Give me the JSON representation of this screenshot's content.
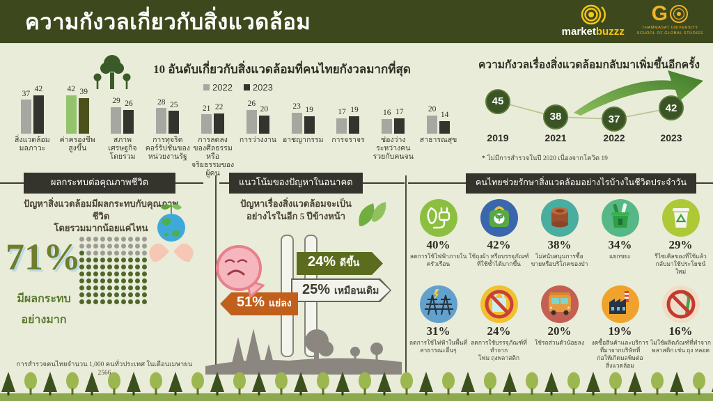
{
  "header": {
    "title": "ความกังวลเกี่ยวกับสิ่งแวดล้อม",
    "brand_market": "market",
    "brand_buzzz": "buzzz",
    "go_letter": "G",
    "go_line1": "THAMMASAT UNIVERSITY",
    "go_line2": "SCHOOL OF GLOBAL STUDIES"
  },
  "section_headers": {
    "impact": "ผลกระทบต่อคุณภาพชีวิต",
    "future": "แนวโน้มของปัญหาในอนาคต",
    "actions": "คนไทยช่วยรักษาสิ่งแวดล้อมอย่างไรบ้างในชีวิตประจำวัน"
  },
  "survey_note": "การสำรวจคนไทยจำนวน 1,000 คนทั่วประเทศ ในเดือนเมษายน  2566",
  "chart_data": [
    {
      "type": "bar",
      "title": "10 อันดับเกี่ยวกับสิ่งแวดล้อมที่คนไทยกังวลมากที่สุด",
      "legend": [
        "2022",
        "2023"
      ],
      "categories": [
        "สิ่งแวดล้อม\nมลภาวะ",
        "ค่าครองชีพ\nสูงขึ้น",
        "สภาพ\nเศรษฐกิจ\nโดยรวม",
        "การทุจริต\nคอร์รัปชันของ\nหน่วยงานรัฐ",
        "การลดลง\nของศีลธรรม\nหรือ\nจริยธรรมของ\nผู้คน",
        "การว่างงาน",
        "อาชญากรรม",
        "การจราจร",
        "ช่องว่าง\nระหว่างคน\nรวยกับคนจน",
        "สาธารณสุข"
      ],
      "series": [
        {
          "name": "2022",
          "values": [
            37,
            42,
            29,
            28,
            21,
            26,
            23,
            17,
            16,
            20
          ]
        },
        {
          "name": "2023",
          "values": [
            42,
            39,
            26,
            25,
            22,
            20,
            19,
            19,
            17,
            14
          ]
        }
      ],
      "highlight_index": 1,
      "ylim": [
        0,
        50
      ],
      "colors": {
        "s2022": "#a7a7a2",
        "s2023": "#34342e",
        "h2022": "#93c36a",
        "h2023": "#4c511c"
      }
    },
    {
      "type": "line",
      "title": "ความกังวลเรื่องสิ่งแวดล้อมกลับมาเพิ่มขึ้นอีกครั้ง",
      "x": [
        "2019",
        "2021",
        "2022",
        "2023"
      ],
      "values": [
        45,
        38,
        37,
        42
      ],
      "footnote_mark": "*",
      "footnote": "ไม่มีการสำรวจในปี 2020 เนื่องจากโควิด 19"
    },
    {
      "type": "pictogram",
      "question": "ปัญหาสิ่งแวดล้อมมีผลกระทบกับคุณภาพชีวิต\nโดยรวมมากน้อยแค่ไหน",
      "percent": 71,
      "percent_label": "71%",
      "caption": "มีผลกระทบ\nอย่างมาก",
      "dots_total": 100,
      "dot_green": "#4e672c",
      "dot_gray": "#9c9c94"
    },
    {
      "type": "split",
      "question": "ปัญหาเรื่องสิ่งแวดล้อมจะเป็น\nอย่างไรในอีก 5 ปีข้างหน้า",
      "options": [
        {
          "pct": "24%",
          "label": "ดีขึ้น"
        },
        {
          "pct": "25%",
          "label": "เหมือนเดิม"
        },
        {
          "pct": "51%",
          "label": "แย่ลง"
        }
      ]
    },
    {
      "type": "icon-list",
      "items": [
        {
          "pct": "40%",
          "label": "ลดการใช้ไฟฟ้าภายในครัวเรือน",
          "icon": "leaf-plug-icon",
          "bg": "#8cbf3f"
        },
        {
          "pct": "42%",
          "label": "ใช้ถุงผ้า หรือบรรจุภัณฑ์\nที่ใช้ซ้ำได้มากขึ้น",
          "icon": "reusable-bag-icon",
          "bg": "#3a66ae"
        },
        {
          "pct": "38%",
          "label": "ไม่สนับสนุนการซื้อ\nขายหรือบริโภคของป่า",
          "icon": "log-icon",
          "bg": "#49ada0"
        },
        {
          "pct": "34%",
          "label": "แยกขยะ",
          "icon": "sorting-bin-icon",
          "bg": "#56b787"
        },
        {
          "pct": "29%",
          "label": "รีไซเคิลของที่ใช้แล้ว\nกลับมาใช้ประโยชน์ใหม่",
          "icon": "recycle-bin-icon",
          "bg": "#aec936"
        },
        {
          "pct": "31%",
          "label": "ลดการใช้ไฟฟ้าในพื้นที่\nสาธารณะอื่นๆ",
          "icon": "power-pylon-icon",
          "bg": "#64a0cc"
        },
        {
          "pct": "24%",
          "label": "ลดการใช้บรรจุภัณฑ์ที่ทำจาก\nโฟม ถุงพลาสติก",
          "icon": "no-plastic-bag-icon",
          "bg": "#f1c12f"
        },
        {
          "pct": "20%",
          "label": "ใช้รถส่วนตัวน้อยลง",
          "icon": "bus-icon",
          "bg": "#c35f53"
        },
        {
          "pct": "19%",
          "label": "งดซื้อสินค้าและบริการ\nที่มาจากบริษัทที่\nก่อให้เกิดมลพิษต่อ\nสิ่งแวดล้อม",
          "icon": "factory-icon",
          "bg": "#efa32c"
        },
        {
          "pct": "16%",
          "label": "ไม่ใช้ผลิตภัณฑ์ที่ทำจาก\nพลาสติก เช่น ถุง หลอด",
          "icon": "no-straw-icon",
          "bg": "#f0ddc8"
        }
      ]
    }
  ]
}
